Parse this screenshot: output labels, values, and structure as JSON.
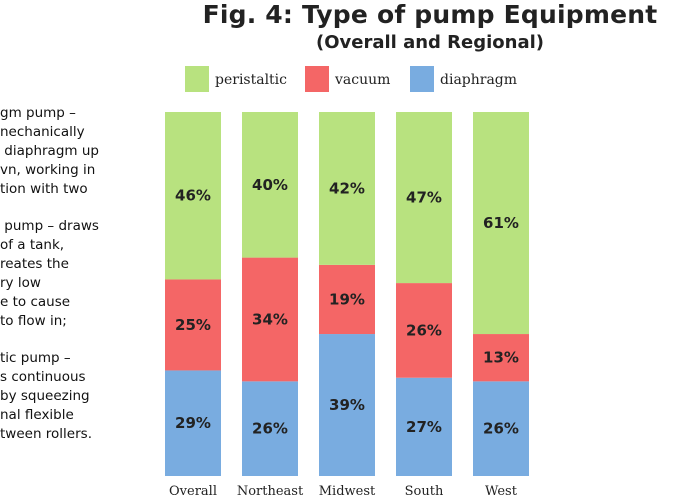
{
  "chart_data": {
    "type": "bar",
    "stacked": true,
    "normalized": true,
    "title": "Fig. 4: Type of pump Equipment",
    "subtitle": "(Overall and Regional)",
    "categories": [
      "Overall",
      "Northeast",
      "Midwest",
      "South",
      "West"
    ],
    "series": [
      {
        "name": "diaphragm",
        "color": "#79ACE0",
        "values": [
          29,
          26,
          39,
          27,
          26
        ],
        "labels": [
          "29%",
          "26%",
          "39%",
          "27%",
          "26%"
        ]
      },
      {
        "name": "vacuum",
        "color": "#F46666",
        "values": [
          25,
          34,
          19,
          26,
          13
        ],
        "labels": [
          "25%",
          "34%",
          "19%",
          "26%",
          "13%"
        ]
      },
      {
        "name": "peristaltic",
        "color": "#B8E27F",
        "values": [
          46,
          40,
          42,
          47,
          61
        ],
        "labels": [
          "46%",
          "40%",
          "42%",
          "47%",
          "61%"
        ]
      }
    ],
    "legend_order": [
      "peristaltic",
      "vacuum",
      "diaphragm"
    ],
    "legend_position": "top",
    "ylim": [
      0,
      100
    ],
    "grid": false
  },
  "description": {
    "paragraphs": [
      [
        "gm pump –",
        "nechanically",
        " diaphragm up",
        "vn, working in",
        "tion with two"
      ],
      [
        " pump – draws",
        "of a tank,",
        "reates the",
        "ry low",
        "e to cause",
        "to flow in;"
      ],
      [
        "tic pump –",
        "s continuous",
        "by squeezing",
        "nal flexible",
        "tween rollers."
      ]
    ]
  }
}
